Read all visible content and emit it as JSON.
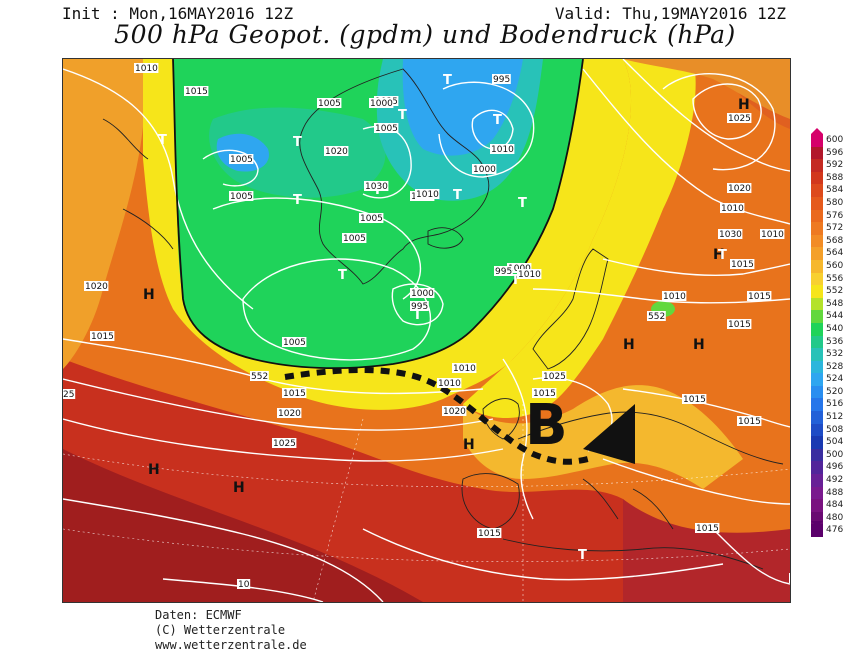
{
  "header": {
    "init": "Init : Mon,16MAY2016 12Z",
    "valid": "Valid: Thu,19MAY2016 12Z",
    "title": "500 hPa Geopot. (gpdm) und Bodendruck (hPa)"
  },
  "footer": {
    "line1": "Daten: ECMWF",
    "line2": "(C) Wetterzentrale",
    "line3": "www.wetterzentrale.de"
  },
  "colors": {
    "ocean_trough_green": "#1fd35a",
    "trough_blue": "#2fa6f0",
    "ridge_yellow": "#f6e51a",
    "orange": "#f0a02a",
    "deep_orange": "#e8731c",
    "red": "#c8301e",
    "dark_red": "#a01e1e"
  },
  "scale": {
    "labels": [
      "600",
      "596",
      "592",
      "588",
      "584",
      "580",
      "576",
      "572",
      "568",
      "564",
      "560",
      "556",
      "552",
      "548",
      "544",
      "540",
      "536",
      "532",
      "528",
      "524",
      "520",
      "516",
      "512",
      "508",
      "504",
      "500",
      "496",
      "492",
      "488",
      "484",
      "480",
      "476"
    ],
    "colors": [
      "#d6006a",
      "#b2182b",
      "#c42a22",
      "#d2381c",
      "#dd4a1c",
      "#e55a1c",
      "#ea6a1e",
      "#ee7a22",
      "#f28c26",
      "#f4a02a",
      "#f6b82e",
      "#f8d030",
      "#f6e51a",
      "#b4e22a",
      "#62d83e",
      "#1fd35a",
      "#22c98a",
      "#28c2b8",
      "#2cb6dc",
      "#2fa6f0",
      "#2a8ef0",
      "#2676ea",
      "#2260d8",
      "#1e4cc6",
      "#1a3ab2",
      "#3a2ea0",
      "#52259a",
      "#682096",
      "#7a1a8e",
      "#7a1280",
      "#6a0a72",
      "#5b006b"
    ]
  },
  "map_labels": {
    "H": [
      "H",
      "H",
      "H",
      "H",
      "H",
      "H",
      "H",
      "H"
    ],
    "T": [
      "T",
      "T",
      "T",
      "T",
      "T",
      "T",
      "T",
      "T",
      "T",
      "T",
      "T",
      "T",
      "T",
      "T"
    ],
    "B": "B",
    "isobars": [
      "1010",
      "1015",
      "1020",
      "1025",
      "1030",
      "1000",
      "1005",
      "995",
      "1010",
      "1005",
      "1005",
      "1000",
      "1010",
      "1005",
      "1010",
      "1005",
      "995",
      "1000",
      "1005",
      "1010",
      "1010",
      "1015",
      "1015",
      "1020",
      "1025",
      "1015",
      "1015",
      "1010",
      "1015",
      "1010",
      "1010",
      "1015",
      "1015",
      "1015",
      "1020",
      "1025",
      "1030",
      "1015",
      "1010",
      "10",
      "1025",
      "552",
      "552",
      "25",
      "1020",
      "1005",
      "1020",
      "1000",
      "995",
      "1015",
      "1010"
    ]
  }
}
